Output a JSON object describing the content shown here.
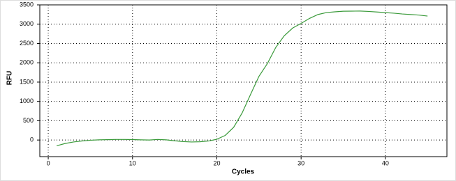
{
  "chart_data": {
    "type": "line",
    "xlabel": "Cycles",
    "ylabel": "RFU",
    "x": [
      1,
      2,
      3,
      4,
      5,
      6,
      7,
      8,
      9,
      10,
      11,
      12,
      13,
      14,
      15,
      16,
      17,
      18,
      19,
      20,
      21,
      22,
      23,
      24,
      25,
      26,
      27,
      28,
      29,
      30,
      31,
      32,
      33,
      34,
      35,
      36,
      37,
      38,
      39,
      40,
      41,
      42,
      43,
      44,
      45
    ],
    "series": [
      {
        "color": "#3a9a3a",
        "values": [
          -150,
          -90,
          -50,
          -25,
          -5,
          5,
          10,
          15,
          15,
          12,
          5,
          0,
          15,
          5,
          -20,
          -40,
          -50,
          -45,
          -25,
          20,
          120,
          330,
          700,
          1180,
          1650,
          1980,
          2400,
          2700,
          2900,
          3020,
          3150,
          3250,
          3300,
          3320,
          3335,
          3338,
          3340,
          3330,
          3315,
          3300,
          3285,
          3265,
          3250,
          3235,
          3210
        ]
      }
    ],
    "xlim": [
      -1,
      47.3
    ],
    "ylim": [
      -430,
      3500
    ],
    "xticks": [
      0,
      10,
      20,
      30,
      40
    ],
    "yticks": [
      0,
      500,
      1000,
      1500,
      2000,
      2500,
      3000,
      3500
    ],
    "grid": true
  }
}
